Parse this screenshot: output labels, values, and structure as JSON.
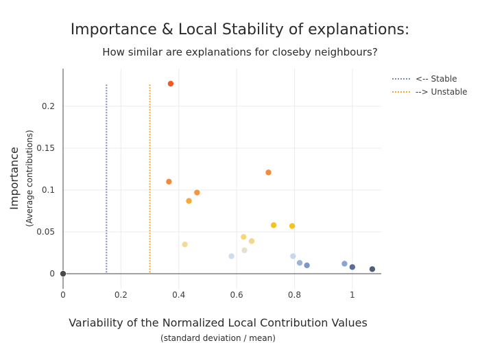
{
  "chart_data": {
    "type": "scatter",
    "title": "Importance & Local Stability of explanations:",
    "subtitle": "How similar are explanations for closeby neighbours?",
    "xlabel": "Variability of the Normalized Local Contribution Values",
    "xlabel_sub": "(standard deviation / mean)",
    "ylabel": "Importance",
    "ylabel_sub": "(Average contributions)",
    "xlim": [
      0,
      1.1
    ],
    "ylim": [
      -0.018,
      0.245
    ],
    "x_ticks": [
      0,
      0.2,
      0.4,
      0.6,
      0.8,
      1
    ],
    "x_tick_labels": [
      "0",
      "0.2",
      "0.4",
      "0.6",
      "0.8",
      "1"
    ],
    "y_ticks": [
      0,
      0.05,
      0.1,
      0.15,
      0.2
    ],
    "y_tick_labels": [
      "0",
      "0.05",
      "0.1",
      "0.15",
      "0.2"
    ],
    "grid": true,
    "legend_position": "top-right",
    "threshold_lines": [
      {
        "name": "<-- Stable",
        "x": 0.15,
        "y_range": [
          0,
          0.226
        ],
        "color": "#6f8fb8"
      },
      {
        "name": "--> Unstable",
        "x": 0.3,
        "y_range": [
          0,
          0.226
        ],
        "color": "#f5a623"
      }
    ],
    "points": [
      {
        "x": 0.0,
        "y": 0.0,
        "color": "#4a4a4a"
      },
      {
        "x": 0.372,
        "y": 0.227,
        "color": "#f05a28"
      },
      {
        "x": 0.366,
        "y": 0.11,
        "color": "#f28a3c"
      },
      {
        "x": 0.435,
        "y": 0.087,
        "color": "#f7a93a"
      },
      {
        "x": 0.463,
        "y": 0.097,
        "color": "#f59540"
      },
      {
        "x": 0.71,
        "y": 0.121,
        "color": "#f38b3a"
      },
      {
        "x": 0.728,
        "y": 0.058,
        "color": "#f5c224"
      },
      {
        "x": 0.792,
        "y": 0.057,
        "color": "#f5c224"
      },
      {
        "x": 0.421,
        "y": 0.035,
        "color": "#f3dc9a"
      },
      {
        "x": 0.624,
        "y": 0.044,
        "color": "#f5d77a"
      },
      {
        "x": 0.652,
        "y": 0.039,
        "color": "#f1d88e"
      },
      {
        "x": 0.627,
        "y": 0.028,
        "color": "#e5e2cc"
      },
      {
        "x": 0.582,
        "y": 0.021,
        "color": "#cfdcec"
      },
      {
        "x": 0.795,
        "y": 0.021,
        "color": "#c7d6ea"
      },
      {
        "x": 0.818,
        "y": 0.013,
        "color": "#9bb3d6"
      },
      {
        "x": 0.843,
        "y": 0.01,
        "color": "#7c97c4"
      },
      {
        "x": 0.973,
        "y": 0.012,
        "color": "#8aa3cf"
      },
      {
        "x": 1.0,
        "y": 0.008,
        "color": "#5a6f95"
      },
      {
        "x": 1.069,
        "y": 0.0055,
        "color": "#4f5e7a"
      }
    ]
  }
}
